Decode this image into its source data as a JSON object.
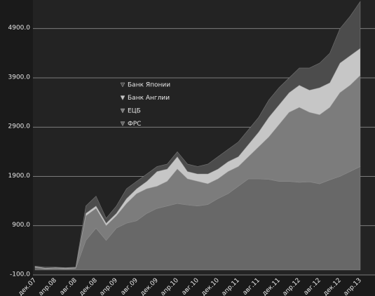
{
  "chart_data": {
    "type": "stacked_area",
    "categories": [
      "дек.07",
      null,
      "апр.08",
      null,
      "авг.08",
      null,
      "дек.08",
      null,
      "апр.09",
      null,
      "авг.09",
      null,
      "дек.09",
      null,
      "апр.10",
      null,
      "авг.10",
      null,
      "дек.10",
      null,
      "апр.11",
      null,
      "авг.11",
      null,
      "дек.11",
      null,
      "апр.12",
      null,
      "авг.12",
      null,
      "дек.12",
      null,
      "апр.13"
    ],
    "series": [
      {
        "name": "ФРС",
        "color": "#686868",
        "values": [
          50,
          20,
          30,
          20,
          30,
          600,
          850,
          600,
          850,
          950,
          1000,
          1150,
          1250,
          1300,
          1350,
          1320,
          1300,
          1330,
          1450,
          1550,
          1700,
          1850,
          1850,
          1840,
          1800,
          1800,
          1780,
          1790,
          1750,
          1830,
          1900,
          2000,
          2100
        ]
      },
      {
        "name": "ЕЦБ",
        "color": "#7c7c7c",
        "values": [
          10,
          10,
          10,
          10,
          10,
          500,
          400,
          300,
          250,
          400,
          550,
          500,
          450,
          500,
          700,
          530,
          500,
          420,
          400,
          450,
          400,
          450,
          650,
          860,
          1150,
          1400,
          1520,
          1410,
          1400,
          1470,
          1700,
          1750,
          1850
        ]
      },
      {
        "name": "Банк Англии",
        "color": "#c6c6c6",
        "values": [
          10,
          10,
          10,
          10,
          10,
          50,
          50,
          50,
          50,
          100,
          100,
          150,
          300,
          250,
          250,
          150,
          150,
          200,
          200,
          200,
          200,
          250,
          300,
          400,
          400,
          400,
          450,
          450,
          550,
          500,
          600,
          600,
          550
        ]
      },
      {
        "name": "Банк Японии",
        "color": "#4c4c4c",
        "values": [
          10,
          20,
          10,
          10,
          10,
          150,
          200,
          100,
          150,
          200,
          150,
          150,
          100,
          100,
          100,
          150,
          150,
          200,
          250,
          250,
          300,
          300,
          300,
          350,
          350,
          300,
          350,
          450,
          500,
          600,
          700,
          800,
          950
        ]
      }
    ],
    "ylim": [
      -100,
      5480
    ],
    "yticks": [
      {
        "value": -100,
        "label": "-100.0"
      },
      {
        "value": 900,
        "label": "900.0"
      },
      {
        "value": 1900,
        "label": "1900.0"
      },
      {
        "value": 2900,
        "label": "2900.0"
      },
      {
        "value": 3900,
        "label": "3900.0"
      },
      {
        "value": 4900,
        "label": "4900.0"
      }
    ],
    "grid": true
  }
}
